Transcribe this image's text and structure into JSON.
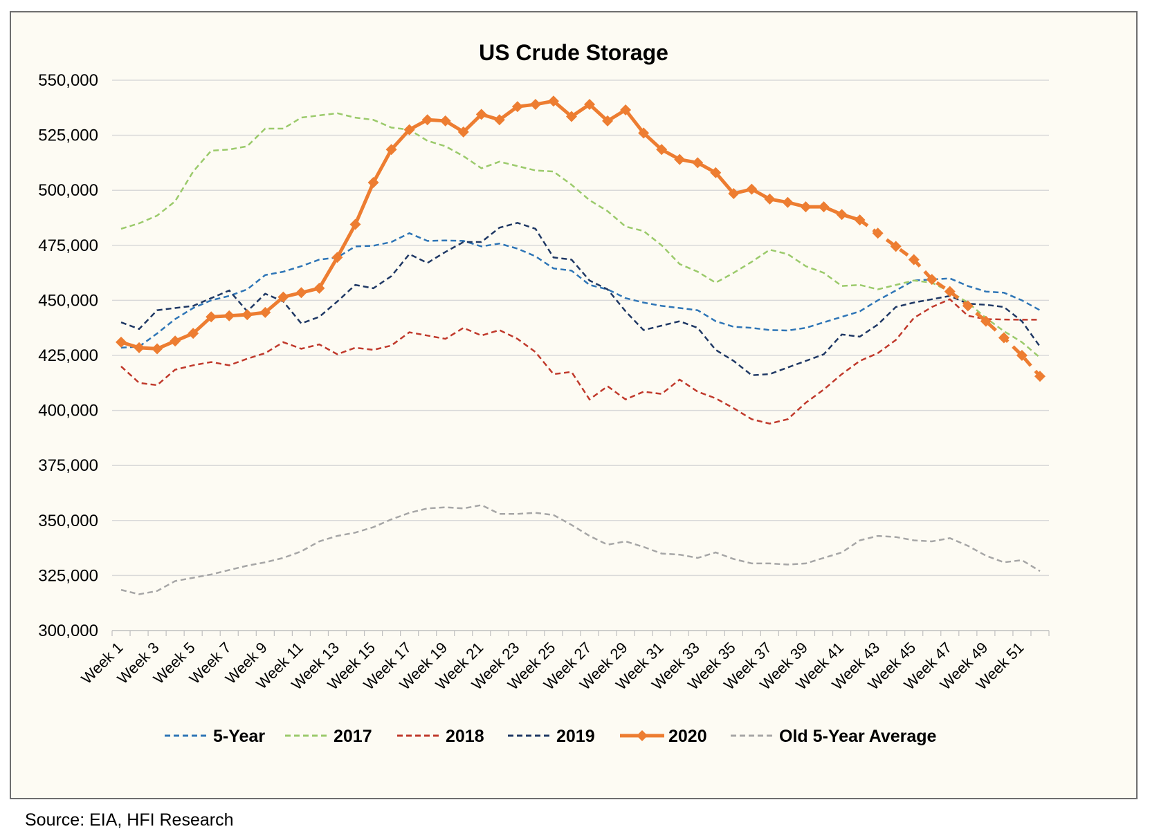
{
  "source": "Source: EIA, HFI Research",
  "chart_data": {
    "type": "line",
    "title": "US Crude Storage",
    "xlabel": "",
    "ylabel": "",
    "ylim": [
      300000,
      550000
    ],
    "yticks": [
      300000,
      325000,
      350000,
      375000,
      400000,
      425000,
      450000,
      475000,
      500000,
      525000,
      550000
    ],
    "ytick_labels": [
      "300,000",
      "325,000",
      "350,000",
      "375,000",
      "400,000",
      "425,000",
      "450,000",
      "475,000",
      "500,000",
      "525,000",
      "550,000"
    ],
    "categories": [
      "Week 1",
      "Week 2",
      "Week 3",
      "Week 4",
      "Week 5",
      "Week 6",
      "Week 7",
      "Week 8",
      "Week 9",
      "Week 10",
      "Week 11",
      "Week 12",
      "Week 13",
      "Week 14",
      "Week 15",
      "Week 16",
      "Week 17",
      "Week 18",
      "Week 19",
      "Week 20",
      "Week 21",
      "Week 22",
      "Week 23",
      "Week 24",
      "Week 25",
      "Week 26",
      "Week 27",
      "Week 28",
      "Week 29",
      "Week 30",
      "Week 31",
      "Week 32",
      "Week 33",
      "Week 34",
      "Week 35",
      "Week 36",
      "Week 37",
      "Week 38",
      "Week 39",
      "Week 40",
      "Week 41",
      "Week 42",
      "Week 43",
      "Week 44",
      "Week 45",
      "Week 46",
      "Week 47",
      "Week 48",
      "Week 49",
      "Week 50",
      "Week 51",
      "Week 52"
    ],
    "x_tick_labels": [
      "Week 1",
      "Week 3",
      "Week 5",
      "Week 7",
      "Week 9",
      "Week 11",
      "Week 13",
      "Week 15",
      "Week 17",
      "Week 19",
      "Week 21",
      "Week 23",
      "Week 25",
      "Week 27",
      "Week 29",
      "Week 31",
      "Week 33",
      "Week 35",
      "Week 37",
      "Week 39",
      "Week 41",
      "Week 43",
      "Week 45",
      "Week 47",
      "Week 49",
      "Week 51"
    ],
    "grid": true,
    "legend_position": "bottom",
    "series": [
      {
        "name": "5-Year",
        "color": "#2e75b6",
        "dash": "dashed",
        "values": [
          428500,
          429000,
          435000,
          441500,
          446500,
          450000,
          452000,
          455000,
          461500,
          463000,
          465500,
          468500,
          469500,
          474500,
          474800,
          476500,
          480500,
          477000,
          477200,
          477000,
          474500,
          475800,
          473500,
          470000,
          464500,
          463500,
          457000,
          455000,
          451000,
          449000,
          447500,
          446500,
          445500,
          440500,
          438000,
          437500,
          436500,
          436300,
          437500,
          440000,
          442500,
          445000,
          450000,
          454500,
          459000,
          459500,
          460000,
          456500,
          454000,
          453500,
          450000,
          445500
        ]
      },
      {
        "name": "2017",
        "color": "#9bca6b",
        "dash": "dashed",
        "values": [
          482500,
          485000,
          488500,
          495000,
          508500,
          518000,
          518500,
          520000,
          528000,
          528000,
          533000,
          534000,
          535000,
          533000,
          532000,
          528500,
          527500,
          522500,
          520000,
          515500,
          510000,
          513000,
          511000,
          509000,
          508500,
          502500,
          495500,
          490500,
          483500,
          481500,
          475000,
          466500,
          463000,
          458000,
          462500,
          467500,
          473000,
          471000,
          465500,
          462500,
          456500,
          457000,
          455000,
          457000,
          459000,
          458000,
          454000,
          449000,
          442000,
          436000,
          431000,
          424000
        ]
      },
      {
        "name": "2018",
        "color": "#c0392b",
        "dash": "dashed",
        "values": [
          420000,
          412500,
          411500,
          418500,
          420500,
          422000,
          420500,
          423500,
          426000,
          431000,
          428000,
          430000,
          425500,
          428500,
          427500,
          429500,
          435500,
          434000,
          432500,
          437500,
          434000,
          436500,
          432500,
          426500,
          416500,
          417500,
          405000,
          411000,
          405000,
          408500,
          407500,
          414000,
          408500,
          405500,
          401000,
          396000,
          394000,
          396000,
          403500,
          409500,
          416500,
          422500,
          426000,
          432000,
          442000,
          447000,
          450500,
          443000,
          441500,
          441300,
          441200,
          441200
        ]
      },
      {
        "name": "2019",
        "color": "#1f3864",
        "dash": "dashed",
        "values": [
          440000,
          437000,
          445500,
          446500,
          447500,
          451000,
          454500,
          445000,
          453000,
          449500,
          439500,
          442500,
          449500,
          457000,
          455500,
          461000,
          471000,
          467000,
          472000,
          476500,
          476500,
          483000,
          485200,
          482500,
          469500,
          468500,
          459000,
          455000,
          445000,
          436500,
          438500,
          440500,
          437500,
          427500,
          422500,
          416000,
          416500,
          419500,
          422500,
          425500,
          434500,
          433500,
          439000,
          447000,
          449000,
          450500,
          452000,
          448500,
          448000,
          447000,
          440500,
          429000
        ]
      },
      {
        "name": "2020",
        "color": "#ed7d31",
        "dash": "solid",
        "marker": "diamond",
        "values": [
          431000,
          428500,
          428000,
          431500,
          435000,
          442500,
          443000,
          443500,
          444500,
          451500,
          453500,
          455500,
          469500,
          484500,
          503500,
          518500,
          527500,
          532000,
          531500,
          526500,
          534500,
          532000,
          538000,
          539000,
          540500,
          533500,
          539000,
          531500,
          536500,
          526000,
          518500,
          514000,
          512500,
          508000,
          498500,
          500500,
          496000,
          494500,
          492500,
          492500,
          489000,
          486500,
          480500,
          474500,
          468500,
          459500,
          454000,
          447500,
          440500,
          433000,
          425000,
          415500
        ],
        "actual_through": "Week 42",
        "projected_from": "Week 42"
      },
      {
        "name": "Old 5-Year Average",
        "color": "#a6a6a6",
        "dash": "dashed",
        "values": [
          318500,
          316500,
          318000,
          322500,
          324000,
          325500,
          327500,
          329500,
          331000,
          333000,
          336000,
          340500,
          343000,
          344500,
          347000,
          350500,
          353500,
          355500,
          356000,
          355500,
          357000,
          353000,
          353000,
          353500,
          352500,
          348000,
          343000,
          339000,
          340500,
          338000,
          335000,
          334500,
          333000,
          335500,
          332500,
          330500,
          330500,
          330000,
          330500,
          333000,
          335500,
          341000,
          343000,
          342500,
          341000,
          340500,
          342000,
          338500,
          334000,
          331000,
          332000,
          327000
        ]
      }
    ]
  }
}
